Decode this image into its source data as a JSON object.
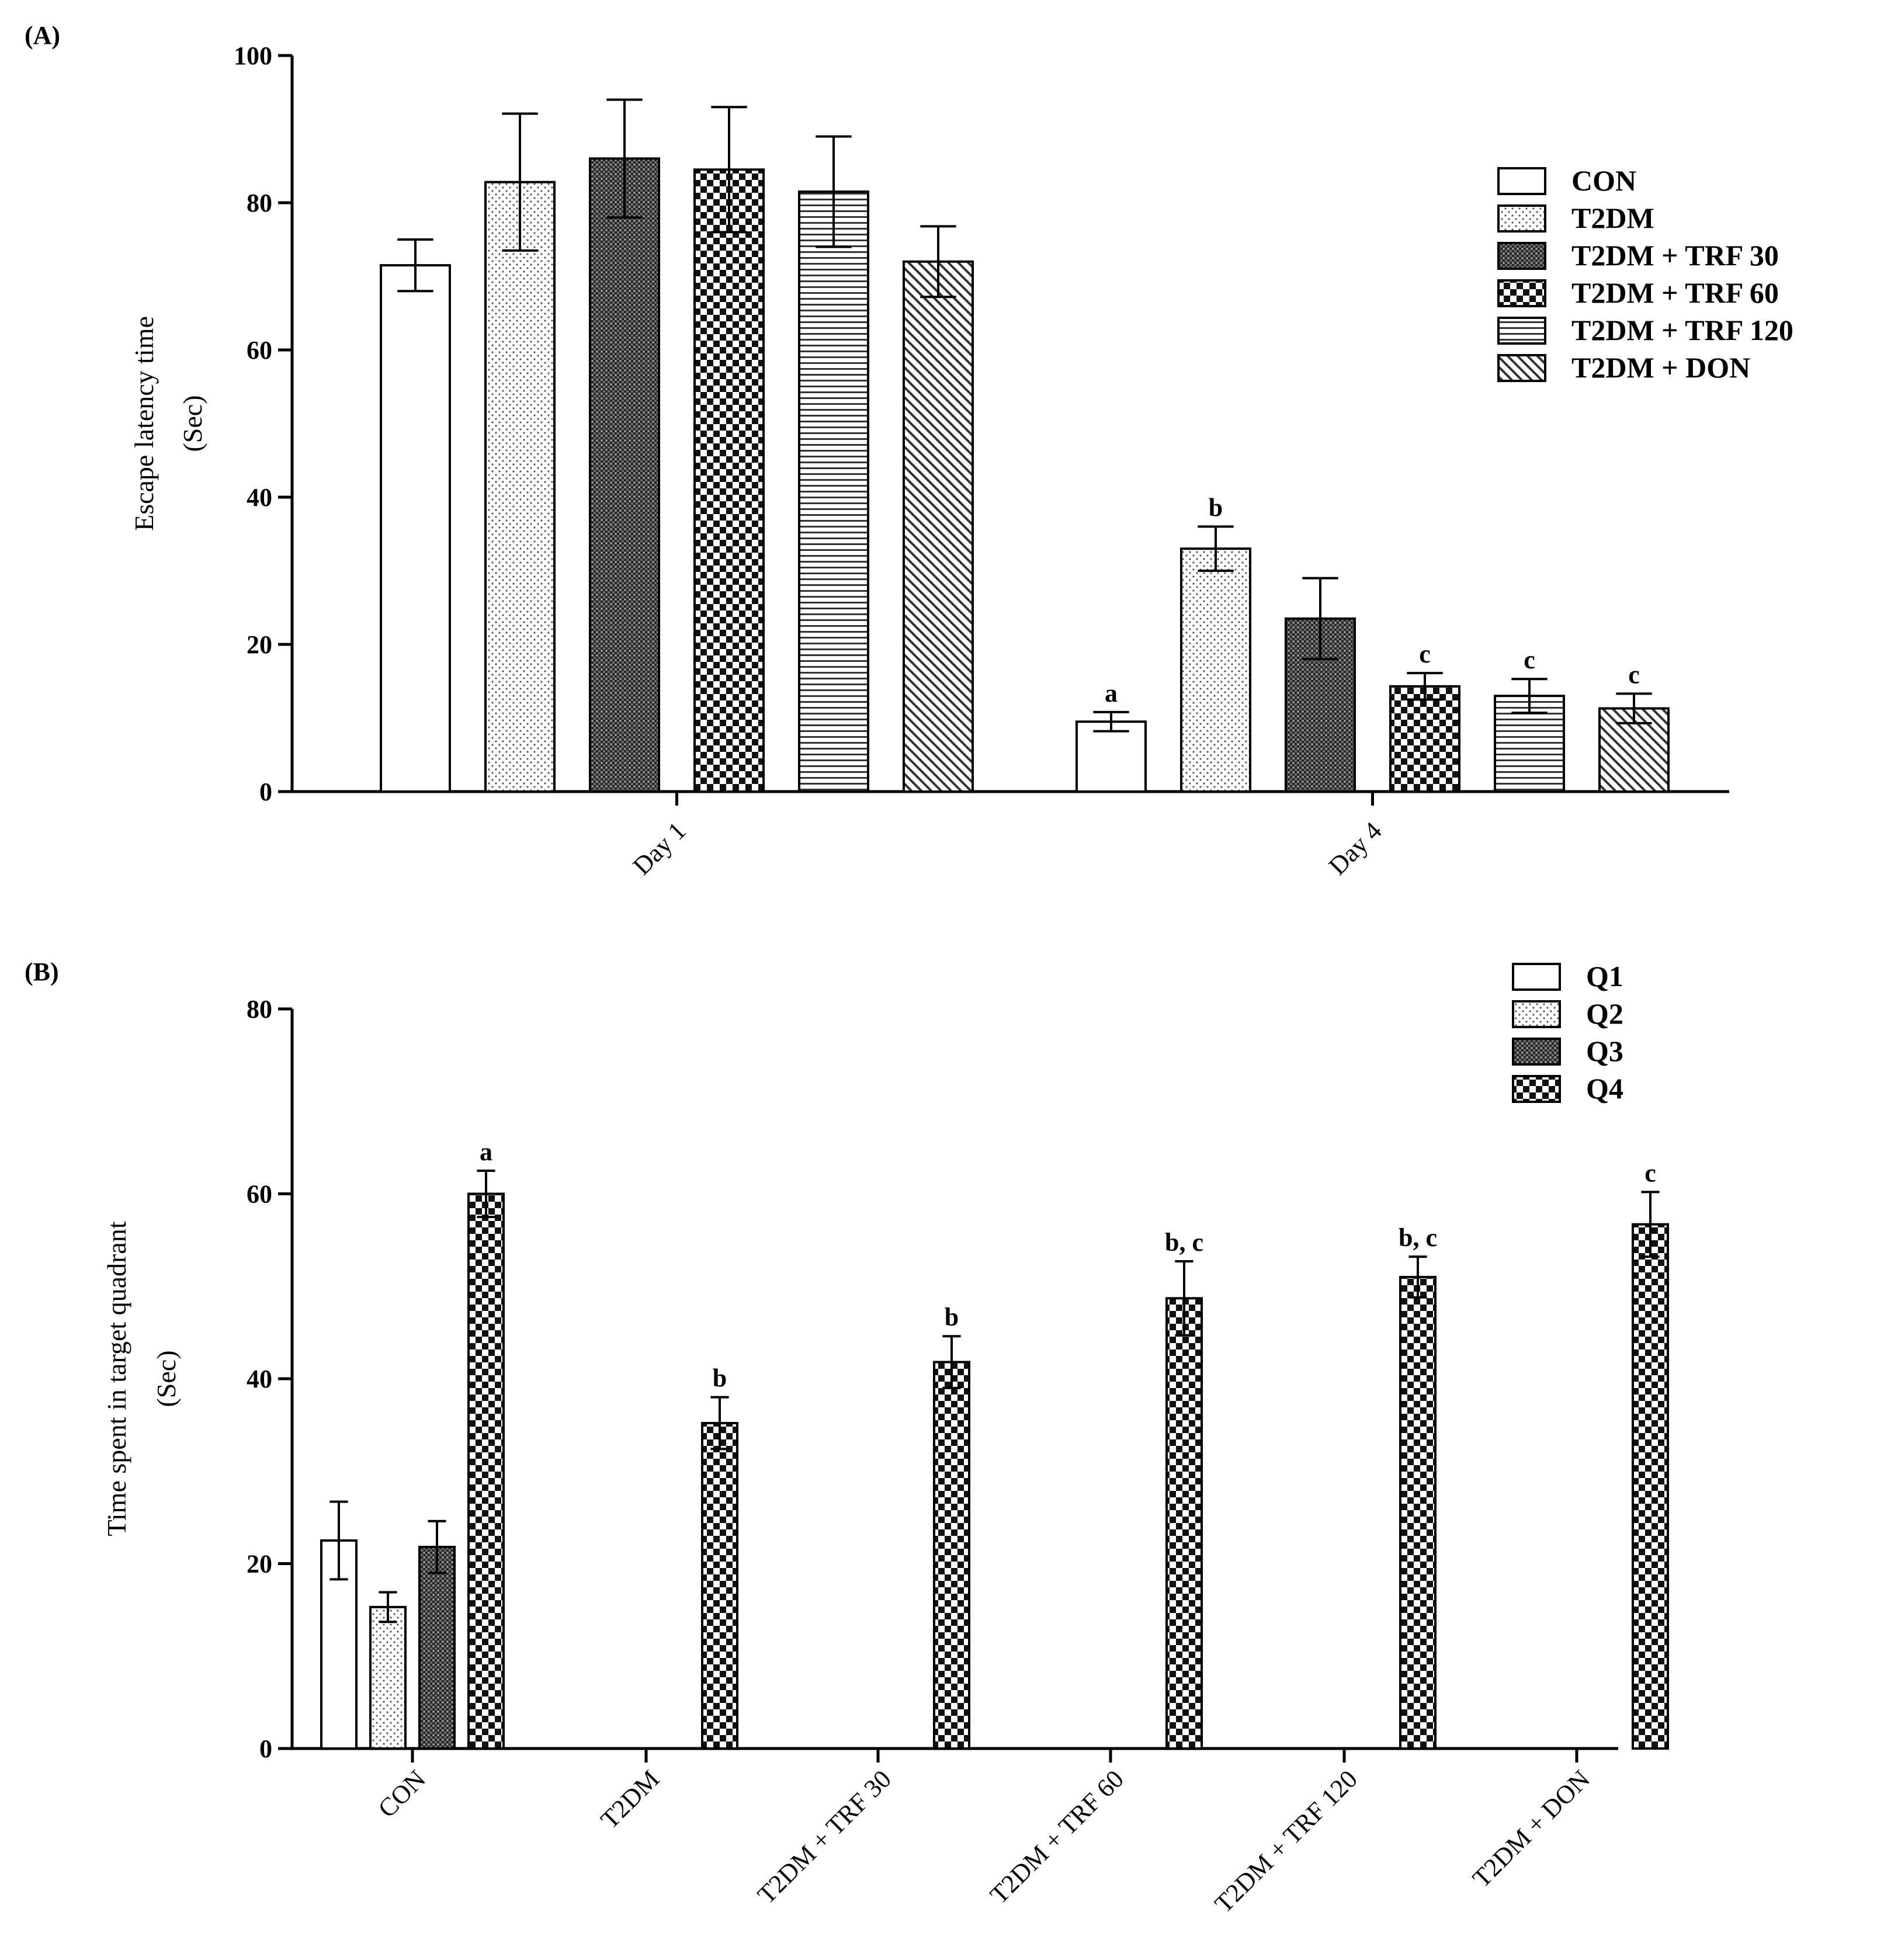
{
  "chart_data": [
    {
      "type": "bar",
      "panel_label": "(A)",
      "ylabel_line1": "Escape latency time",
      "ylabel_line2": "(Sec)",
      "xlabel": "",
      "ylim": [
        0,
        100
      ],
      "yticks": [
        0,
        20,
        40,
        60,
        80,
        100
      ],
      "categories": [
        "Day 1",
        "Day 4"
      ],
      "series": [
        {
          "name": "CON",
          "pattern": "white",
          "values": [
            71.5,
            9.5
          ],
          "errors": [
            3.5,
            1.3
          ],
          "labels": [
            "",
            "a"
          ]
        },
        {
          "name": "T2DM",
          "pattern": "dots",
          "values": [
            82.8,
            33.0
          ],
          "errors": [
            9.3,
            3.0
          ],
          "labels": [
            "",
            "b"
          ]
        },
        {
          "name": "T2DM + TRF 30",
          "pattern": "dense",
          "values": [
            86.0,
            23.5
          ],
          "errors": [
            8.0,
            5.5
          ],
          "labels": [
            "",
            ""
          ]
        },
        {
          "name": "T2DM + TRF 60",
          "pattern": "checker",
          "values": [
            84.5,
            14.3
          ],
          "errors": [
            8.5,
            1.8
          ],
          "labels": [
            "",
            "c"
          ]
        },
        {
          "name": "T2DM + TRF 120",
          "pattern": "hlines",
          "values": [
            81.5,
            13.0
          ],
          "errors": [
            7.5,
            2.3
          ],
          "labels": [
            "",
            "c"
          ]
        },
        {
          "name": "T2DM + DON",
          "pattern": "diag",
          "values": [
            72.0,
            11.3
          ],
          "errors": [
            4.8,
            2.0
          ],
          "labels": [
            "",
            "c"
          ]
        }
      ],
      "legend_position": "top-right"
    },
    {
      "type": "bar",
      "panel_label": "(B)",
      "ylabel_line1": "Time spent in target quadrant",
      "ylabel_line2": "(Sec)",
      "xlabel": "",
      "ylim": [
        0,
        80
      ],
      "yticks": [
        0,
        20,
        40,
        60,
        80
      ],
      "categories": [
        "CON",
        "T2DM",
        "T2DM + TRF 30",
        "T2DM + TRF 60",
        "T2DM + TRF 120",
        "T2DM + DON"
      ],
      "series": [
        {
          "name": "Q1",
          "pattern": "white",
          "values": [
            22.5,
            null,
            null,
            null,
            null,
            null
          ],
          "errors": [
            4.2,
            null,
            null,
            null,
            null,
            null
          ],
          "labels": [
            "",
            "",
            "",
            "",
            "",
            ""
          ]
        },
        {
          "name": "Q2",
          "pattern": "dots",
          "values": [
            15.3,
            null,
            null,
            null,
            null,
            null
          ],
          "errors": [
            1.6,
            null,
            null,
            null,
            null,
            null
          ],
          "labels": [
            "",
            "",
            "",
            "",
            "",
            ""
          ]
        },
        {
          "name": "Q3",
          "pattern": "dense",
          "values": [
            21.8,
            null,
            null,
            null,
            null,
            null
          ],
          "errors": [
            2.8,
            null,
            null,
            null,
            null,
            null
          ],
          "labels": [
            "",
            "",
            "",
            "",
            "",
            ""
          ]
        },
        {
          "name": "Q4",
          "pattern": "checker",
          "values": [
            60.0,
            35.2,
            41.8,
            48.7,
            51.0,
            56.7
          ],
          "errors": [
            2.5,
            2.8,
            2.8,
            4.0,
            2.2,
            3.5
          ],
          "labels": [
            "a",
            "b",
            "b",
            "b, c",
            "b, c",
            "c"
          ]
        }
      ],
      "legend_position": "top-right"
    }
  ]
}
